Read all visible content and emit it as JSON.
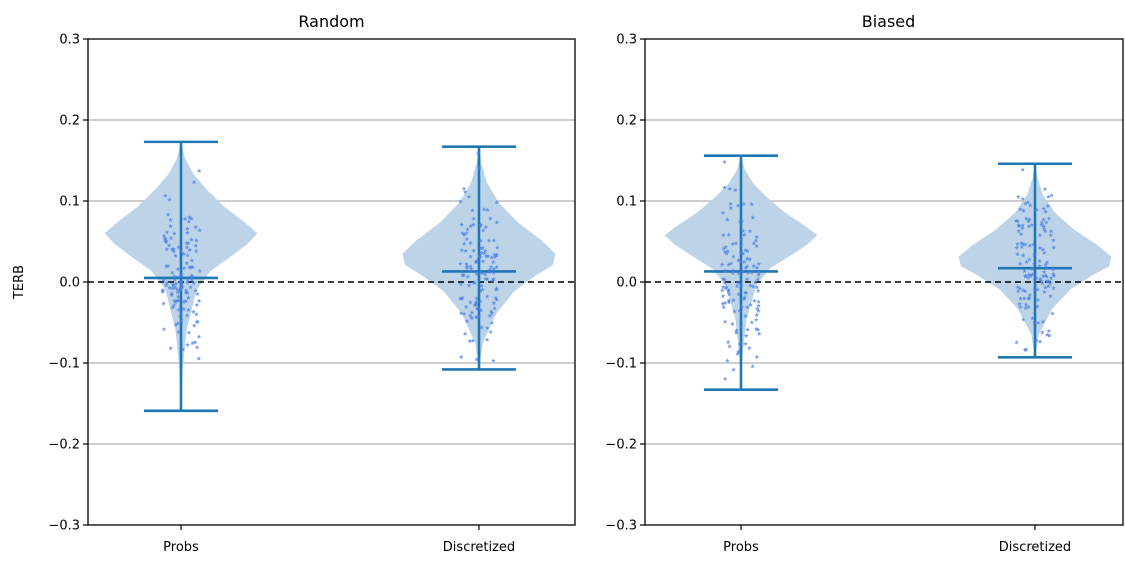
{
  "chart_data": [
    {
      "type": "violin",
      "title": "Random",
      "ylabel": "TERB",
      "xlabel": "",
      "ylim": [
        -0.3,
        0.3
      ],
      "yticks": [
        -0.3,
        -0.2,
        -0.1,
        0.0,
        0.1,
        0.2,
        0.3
      ],
      "ytick_labels": [
        "−0.3",
        "−0.2",
        "−0.1",
        "0.0",
        "0.1",
        "0.2",
        "0.3"
      ],
      "grid": "y",
      "reference_line": {
        "y": 0.0,
        "style": "dashed",
        "color": "#000000"
      },
      "categories": [
        "Probs",
        "Discretized"
      ],
      "groups": [
        {
          "name": "Probs",
          "min": -0.159,
          "max": 0.173,
          "mean": 0.005
        },
        {
          "name": "Discretized",
          "min": -0.108,
          "max": 0.167,
          "mean": 0.013
        }
      ]
    },
    {
      "type": "violin",
      "title": "Biased",
      "ylabel": "",
      "xlabel": "",
      "ylim": [
        -0.3,
        0.3
      ],
      "yticks": [
        -0.3,
        -0.2,
        -0.1,
        0.0,
        0.1,
        0.2,
        0.3
      ],
      "ytick_labels": [
        "−0.3",
        "−0.2",
        "−0.1",
        "0.0",
        "0.1",
        "0.2",
        "0.3"
      ],
      "grid": "y",
      "reference_line": {
        "y": 0.0,
        "style": "dashed",
        "color": "#000000"
      },
      "categories": [
        "Probs",
        "Discretized"
      ],
      "groups": [
        {
          "name": "Probs",
          "min": -0.133,
          "max": 0.156,
          "mean": 0.013
        },
        {
          "name": "Discretized",
          "min": -0.093,
          "max": 0.146,
          "mean": 0.017
        }
      ]
    }
  ],
  "colors": {
    "violin_fill": "#bcd3e8",
    "stats_line": "#1f77b4",
    "points": "#4a7fe6",
    "grid": "#b0b0b0",
    "zero_line": "#000000"
  }
}
